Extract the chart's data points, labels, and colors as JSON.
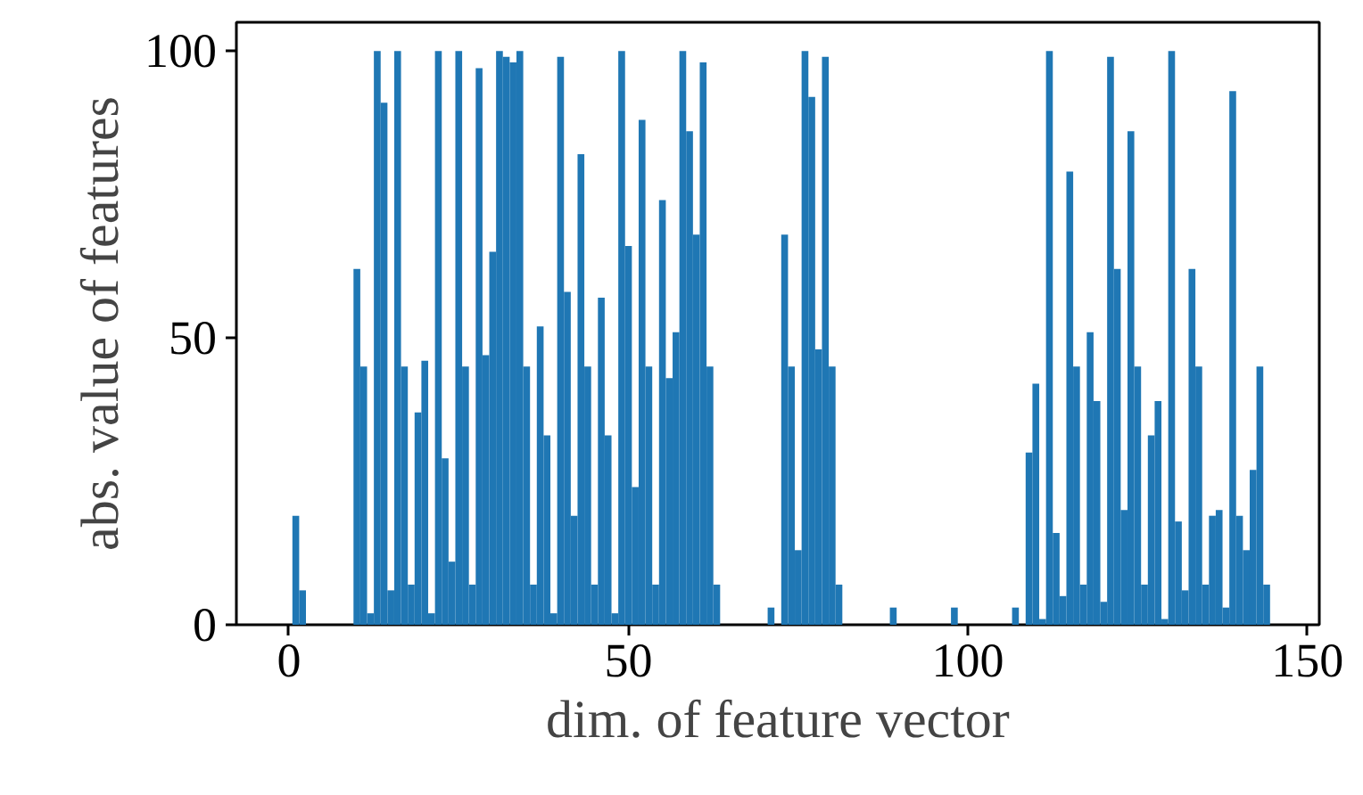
{
  "chart_data": {
    "type": "bar",
    "xlabel": "dim. of feature vector",
    "ylabel": "abs. value of features",
    "color": "#1f77b4",
    "x": [
      0,
      1,
      2,
      3,
      4,
      5,
      6,
      7,
      8,
      9,
      10,
      11,
      12,
      13,
      14,
      15,
      16,
      17,
      18,
      19,
      20,
      21,
      22,
      23,
      24,
      25,
      26,
      27,
      28,
      29,
      30,
      31,
      32,
      33,
      34,
      35,
      36,
      37,
      38,
      39,
      40,
      41,
      42,
      43,
      44,
      45,
      46,
      47,
      48,
      49,
      50,
      51,
      52,
      53,
      54,
      55,
      56,
      57,
      58,
      59,
      60,
      61,
      62,
      63,
      64,
      65,
      66,
      67,
      68,
      69,
      70,
      71,
      72,
      73,
      74,
      75,
      76,
      77,
      78,
      79,
      80,
      81,
      82,
      83,
      84,
      85,
      86,
      87,
      88,
      89,
      90,
      91,
      92,
      93,
      94,
      95,
      96,
      97,
      98,
      99,
      100,
      101,
      102,
      103,
      104,
      105,
      106,
      107,
      108,
      109,
      110,
      111,
      112,
      113,
      114,
      115,
      116,
      117,
      118,
      119,
      120,
      121,
      122,
      123,
      124,
      125,
      126,
      127,
      128,
      129,
      130,
      131,
      132,
      133,
      134,
      135,
      136,
      137,
      138,
      139,
      140,
      141,
      142,
      143,
      144
    ],
    "values": [
      0,
      19,
      6,
      0,
      0,
      0,
      0,
      0,
      0,
      0,
      62,
      45,
      2,
      100,
      91,
      6,
      100,
      45,
      7,
      37,
      46,
      2,
      100,
      29,
      11,
      100,
      45,
      7,
      97,
      47,
      65,
      100,
      99,
      98,
      100,
      45,
      7,
      52,
      33,
      2,
      99,
      58,
      19,
      82,
      45,
      7,
      57,
      33,
      2,
      100,
      66,
      24,
      88,
      45,
      7,
      74,
      43,
      51,
      100,
      86,
      68,
      98,
      45,
      7,
      0,
      0,
      0,
      0,
      0,
      0,
      0,
      3,
      0,
      68,
      45,
      13,
      100,
      92,
      48,
      99,
      45,
      7,
      0,
      0,
      0,
      0,
      0,
      0,
      0,
      3,
      0,
      0,
      0,
      0,
      0,
      0,
      0,
      0,
      3,
      0,
      0,
      0,
      0,
      0,
      0,
      0,
      0,
      3,
      0,
      30,
      42,
      1,
      100,
      16,
      5,
      79,
      45,
      7,
      51,
      39,
      4,
      99,
      62,
      20,
      86,
      45,
      7,
      33,
      39,
      1,
      100,
      18,
      6,
      62,
      45,
      7,
      19,
      20,
      3,
      93,
      19,
      13,
      27,
      45,
      7
    ],
    "xlim": [
      -7.75,
      151.75
    ],
    "ylim": [
      0,
      105
    ],
    "xticks": [
      0,
      50,
      100,
      150
    ],
    "yticks": [
      0,
      50,
      100
    ],
    "grid": false
  }
}
